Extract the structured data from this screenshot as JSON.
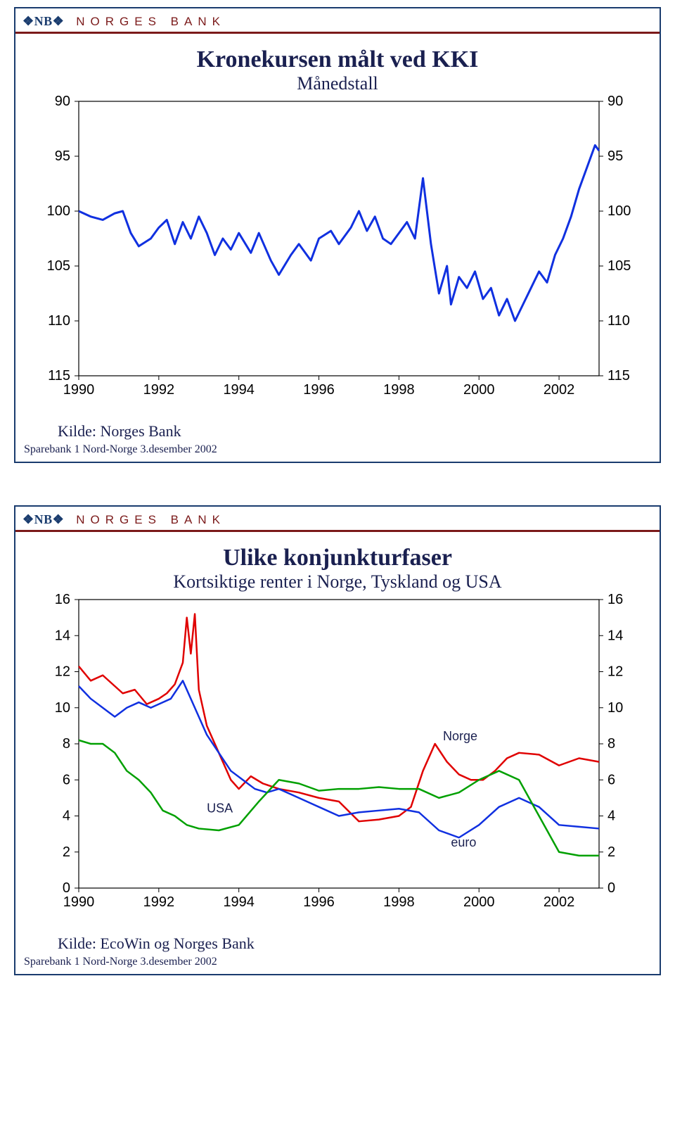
{
  "brand": {
    "mark": "❖NB❖",
    "name": "NORGES BANK"
  },
  "chart1": {
    "type": "line",
    "title": "Kronekursen målt ved KKI",
    "subtitle": "Månedstall",
    "source": "Kilde: Norges Bank",
    "footer": "Sparebank 1 Nord-Norge 3.desember 2002",
    "x_ticks": [
      1990,
      1992,
      1994,
      1996,
      1998,
      2000,
      2002
    ],
    "y_ticks_left": [
      90,
      95,
      100,
      105,
      110,
      115
    ],
    "y_ticks_right": [
      90,
      95,
      100,
      105,
      110,
      115
    ],
    "xmin": 1990,
    "xmax": 2003,
    "ymin": 90,
    "ymax": 115,
    "y_inverted": true,
    "line_color": "#1030e0",
    "line_width": 3,
    "grid_color": "#000000",
    "background_color": "#ffffff",
    "axis_fontsize": 20,
    "title_fontsize": 34,
    "subtitle_fontsize": 26,
    "series": [
      {
        "x": 1990.0,
        "y": 100.0
      },
      {
        "x": 1990.3,
        "y": 100.5
      },
      {
        "x": 1990.6,
        "y": 100.8
      },
      {
        "x": 1990.9,
        "y": 100.2
      },
      {
        "x": 1991.1,
        "y": 100.0
      },
      {
        "x": 1991.3,
        "y": 102.0
      },
      {
        "x": 1991.5,
        "y": 103.2
      },
      {
        "x": 1991.8,
        "y": 102.5
      },
      {
        "x": 1992.0,
        "y": 101.5
      },
      {
        "x": 1992.2,
        "y": 100.8
      },
      {
        "x": 1992.4,
        "y": 103.0
      },
      {
        "x": 1992.6,
        "y": 101.0
      },
      {
        "x": 1992.8,
        "y": 102.5
      },
      {
        "x": 1993.0,
        "y": 100.5
      },
      {
        "x": 1993.2,
        "y": 102.0
      },
      {
        "x": 1993.4,
        "y": 104.0
      },
      {
        "x": 1993.6,
        "y": 102.5
      },
      {
        "x": 1993.8,
        "y": 103.5
      },
      {
        "x": 1994.0,
        "y": 102.0
      },
      {
        "x": 1994.3,
        "y": 103.8
      },
      {
        "x": 1994.5,
        "y": 102.0
      },
      {
        "x": 1994.8,
        "y": 104.5
      },
      {
        "x": 1995.0,
        "y": 105.8
      },
      {
        "x": 1995.3,
        "y": 104.0
      },
      {
        "x": 1995.5,
        "y": 103.0
      },
      {
        "x": 1995.8,
        "y": 104.5
      },
      {
        "x": 1996.0,
        "y": 102.5
      },
      {
        "x": 1996.3,
        "y": 101.8
      },
      {
        "x": 1996.5,
        "y": 103.0
      },
      {
        "x": 1996.8,
        "y": 101.5
      },
      {
        "x": 1997.0,
        "y": 100.0
      },
      {
        "x": 1997.2,
        "y": 101.8
      },
      {
        "x": 1997.4,
        "y": 100.5
      },
      {
        "x": 1997.6,
        "y": 102.5
      },
      {
        "x": 1997.8,
        "y": 103.0
      },
      {
        "x": 1998.0,
        "y": 102.0
      },
      {
        "x": 1998.2,
        "y": 101.0
      },
      {
        "x": 1998.4,
        "y": 102.5
      },
      {
        "x": 1998.6,
        "y": 97.0
      },
      {
        "x": 1998.8,
        "y": 103.0
      },
      {
        "x": 1999.0,
        "y": 107.5
      },
      {
        "x": 1999.2,
        "y": 105.0
      },
      {
        "x": 1999.3,
        "y": 108.5
      },
      {
        "x": 1999.5,
        "y": 106.0
      },
      {
        "x": 1999.7,
        "y": 107.0
      },
      {
        "x": 1999.9,
        "y": 105.5
      },
      {
        "x": 2000.1,
        "y": 108.0
      },
      {
        "x": 2000.3,
        "y": 107.0
      },
      {
        "x": 2000.5,
        "y": 109.5
      },
      {
        "x": 2000.7,
        "y": 108.0
      },
      {
        "x": 2000.9,
        "y": 110.0
      },
      {
        "x": 2001.1,
        "y": 108.5
      },
      {
        "x": 2001.3,
        "y": 107.0
      },
      {
        "x": 2001.5,
        "y": 105.5
      },
      {
        "x": 2001.7,
        "y": 106.5
      },
      {
        "x": 2001.9,
        "y": 104.0
      },
      {
        "x": 2002.1,
        "y": 102.5
      },
      {
        "x": 2002.3,
        "y": 100.5
      },
      {
        "x": 2002.5,
        "y": 98.0
      },
      {
        "x": 2002.7,
        "y": 96.0
      },
      {
        "x": 2002.9,
        "y": 94.0
      },
      {
        "x": 2003.0,
        "y": 94.5
      }
    ]
  },
  "chart2": {
    "type": "line",
    "title": "Ulike konjunkturfaser",
    "subtitle": "Kortsiktige renter i Norge, Tyskland og USA",
    "source": "Kilde: EcoWin og Norges Bank",
    "footer": "Sparebank 1 Nord-Norge 3.desember 2002",
    "x_ticks": [
      1990,
      1992,
      1994,
      1996,
      1998,
      2000,
      2002
    ],
    "y_ticks_left": [
      0,
      2,
      4,
      6,
      8,
      10,
      12,
      14,
      16
    ],
    "y_ticks_right": [
      0,
      2,
      4,
      6,
      8,
      10,
      12,
      14,
      16
    ],
    "xmin": 1990,
    "xmax": 2003,
    "ymin": 0,
    "ymax": 16,
    "y_inverted": false,
    "grid_color": "#000000",
    "background_color": "#ffffff",
    "axis_fontsize": 20,
    "title_fontsize": 34,
    "subtitle_fontsize": 26,
    "label_fontsize": 18,
    "series": [
      {
        "name": "Norge",
        "label": "Norge",
        "label_x": 1999.1,
        "label_y": 8.2,
        "color": "#e00000",
        "width": 2.5,
        "points": [
          {
            "x": 1990.0,
            "y": 12.3
          },
          {
            "x": 1990.3,
            "y": 11.5
          },
          {
            "x": 1990.6,
            "y": 11.8
          },
          {
            "x": 1990.9,
            "y": 11.2
          },
          {
            "x": 1991.1,
            "y": 10.8
          },
          {
            "x": 1991.4,
            "y": 11.0
          },
          {
            "x": 1991.7,
            "y": 10.2
          },
          {
            "x": 1992.0,
            "y": 10.5
          },
          {
            "x": 1992.2,
            "y": 10.8
          },
          {
            "x": 1992.4,
            "y": 11.3
          },
          {
            "x": 1992.6,
            "y": 12.5
          },
          {
            "x": 1992.7,
            "y": 15.0
          },
          {
            "x": 1992.8,
            "y": 13.0
          },
          {
            "x": 1992.9,
            "y": 15.2
          },
          {
            "x": 1993.0,
            "y": 11.0
          },
          {
            "x": 1993.2,
            "y": 9.0
          },
          {
            "x": 1993.5,
            "y": 7.5
          },
          {
            "x": 1993.8,
            "y": 6.0
          },
          {
            "x": 1994.0,
            "y": 5.5
          },
          {
            "x": 1994.3,
            "y": 6.2
          },
          {
            "x": 1994.6,
            "y": 5.8
          },
          {
            "x": 1995.0,
            "y": 5.5
          },
          {
            "x": 1995.5,
            "y": 5.3
          },
          {
            "x": 1996.0,
            "y": 5.0
          },
          {
            "x": 1996.5,
            "y": 4.8
          },
          {
            "x": 1997.0,
            "y": 3.7
          },
          {
            "x": 1997.5,
            "y": 3.8
          },
          {
            "x": 1998.0,
            "y": 4.0
          },
          {
            "x": 1998.3,
            "y": 4.5
          },
          {
            "x": 1998.6,
            "y": 6.5
          },
          {
            "x": 1998.9,
            "y": 8.0
          },
          {
            "x": 1999.2,
            "y": 7.0
          },
          {
            "x": 1999.5,
            "y": 6.3
          },
          {
            "x": 1999.8,
            "y": 6.0
          },
          {
            "x": 2000.1,
            "y": 6.0
          },
          {
            "x": 2000.4,
            "y": 6.5
          },
          {
            "x": 2000.7,
            "y": 7.2
          },
          {
            "x": 2001.0,
            "y": 7.5
          },
          {
            "x": 2001.5,
            "y": 7.4
          },
          {
            "x": 2002.0,
            "y": 6.8
          },
          {
            "x": 2002.5,
            "y": 7.2
          },
          {
            "x": 2003.0,
            "y": 7.0
          }
        ]
      },
      {
        "name": "euro",
        "label": "euro",
        "label_x": 1999.3,
        "label_y": 2.3,
        "color": "#1030e0",
        "width": 2.5,
        "points": [
          {
            "x": 1990.0,
            "y": 11.2
          },
          {
            "x": 1990.3,
            "y": 10.5
          },
          {
            "x": 1990.6,
            "y": 10.0
          },
          {
            "x": 1990.9,
            "y": 9.5
          },
          {
            "x": 1991.2,
            "y": 10.0
          },
          {
            "x": 1991.5,
            "y": 10.3
          },
          {
            "x": 1991.8,
            "y": 10.0
          },
          {
            "x": 1992.0,
            "y": 10.2
          },
          {
            "x": 1992.3,
            "y": 10.5
          },
          {
            "x": 1992.6,
            "y": 11.5
          },
          {
            "x": 1992.9,
            "y": 10.0
          },
          {
            "x": 1993.2,
            "y": 8.5
          },
          {
            "x": 1993.5,
            "y": 7.5
          },
          {
            "x": 1993.8,
            "y": 6.5
          },
          {
            "x": 1994.1,
            "y": 6.0
          },
          {
            "x": 1994.4,
            "y": 5.5
          },
          {
            "x": 1994.7,
            "y": 5.3
          },
          {
            "x": 1995.0,
            "y": 5.5
          },
          {
            "x": 1995.5,
            "y": 5.0
          },
          {
            "x": 1996.0,
            "y": 4.5
          },
          {
            "x": 1996.5,
            "y": 4.0
          },
          {
            "x": 1997.0,
            "y": 4.2
          },
          {
            "x": 1997.5,
            "y": 4.3
          },
          {
            "x": 1998.0,
            "y": 4.4
          },
          {
            "x": 1998.5,
            "y": 4.2
          },
          {
            "x": 1999.0,
            "y": 3.2
          },
          {
            "x": 1999.5,
            "y": 2.8
          },
          {
            "x": 2000.0,
            "y": 3.5
          },
          {
            "x": 2000.5,
            "y": 4.5
          },
          {
            "x": 2001.0,
            "y": 5.0
          },
          {
            "x": 2001.5,
            "y": 4.5
          },
          {
            "x": 2002.0,
            "y": 3.5
          },
          {
            "x": 2002.5,
            "y": 3.4
          },
          {
            "x": 2003.0,
            "y": 3.3
          }
        ]
      },
      {
        "name": "USA",
        "label": "USA",
        "label_x": 1993.2,
        "label_y": 4.2,
        "color": "#00a000",
        "width": 2.5,
        "points": [
          {
            "x": 1990.0,
            "y": 8.2
          },
          {
            "x": 1990.3,
            "y": 8.0
          },
          {
            "x": 1990.6,
            "y": 8.0
          },
          {
            "x": 1990.9,
            "y": 7.5
          },
          {
            "x": 1991.2,
            "y": 6.5
          },
          {
            "x": 1991.5,
            "y": 6.0
          },
          {
            "x": 1991.8,
            "y": 5.3
          },
          {
            "x": 1992.1,
            "y": 4.3
          },
          {
            "x": 1992.4,
            "y": 4.0
          },
          {
            "x": 1992.7,
            "y": 3.5
          },
          {
            "x": 1993.0,
            "y": 3.3
          },
          {
            "x": 1993.5,
            "y": 3.2
          },
          {
            "x": 1994.0,
            "y": 3.5
          },
          {
            "x": 1994.5,
            "y": 4.8
          },
          {
            "x": 1995.0,
            "y": 6.0
          },
          {
            "x": 1995.5,
            "y": 5.8
          },
          {
            "x": 1996.0,
            "y": 5.4
          },
          {
            "x": 1996.5,
            "y": 5.5
          },
          {
            "x": 1997.0,
            "y": 5.5
          },
          {
            "x": 1997.5,
            "y": 5.6
          },
          {
            "x": 1998.0,
            "y": 5.5
          },
          {
            "x": 1998.5,
            "y": 5.5
          },
          {
            "x": 1999.0,
            "y": 5.0
          },
          {
            "x": 1999.5,
            "y": 5.3
          },
          {
            "x": 2000.0,
            "y": 6.0
          },
          {
            "x": 2000.5,
            "y": 6.5
          },
          {
            "x": 2001.0,
            "y": 6.0
          },
          {
            "x": 2001.5,
            "y": 4.0
          },
          {
            "x": 2002.0,
            "y": 2.0
          },
          {
            "x": 2002.5,
            "y": 1.8
          },
          {
            "x": 2003.0,
            "y": 1.8
          }
        ]
      }
    ]
  }
}
